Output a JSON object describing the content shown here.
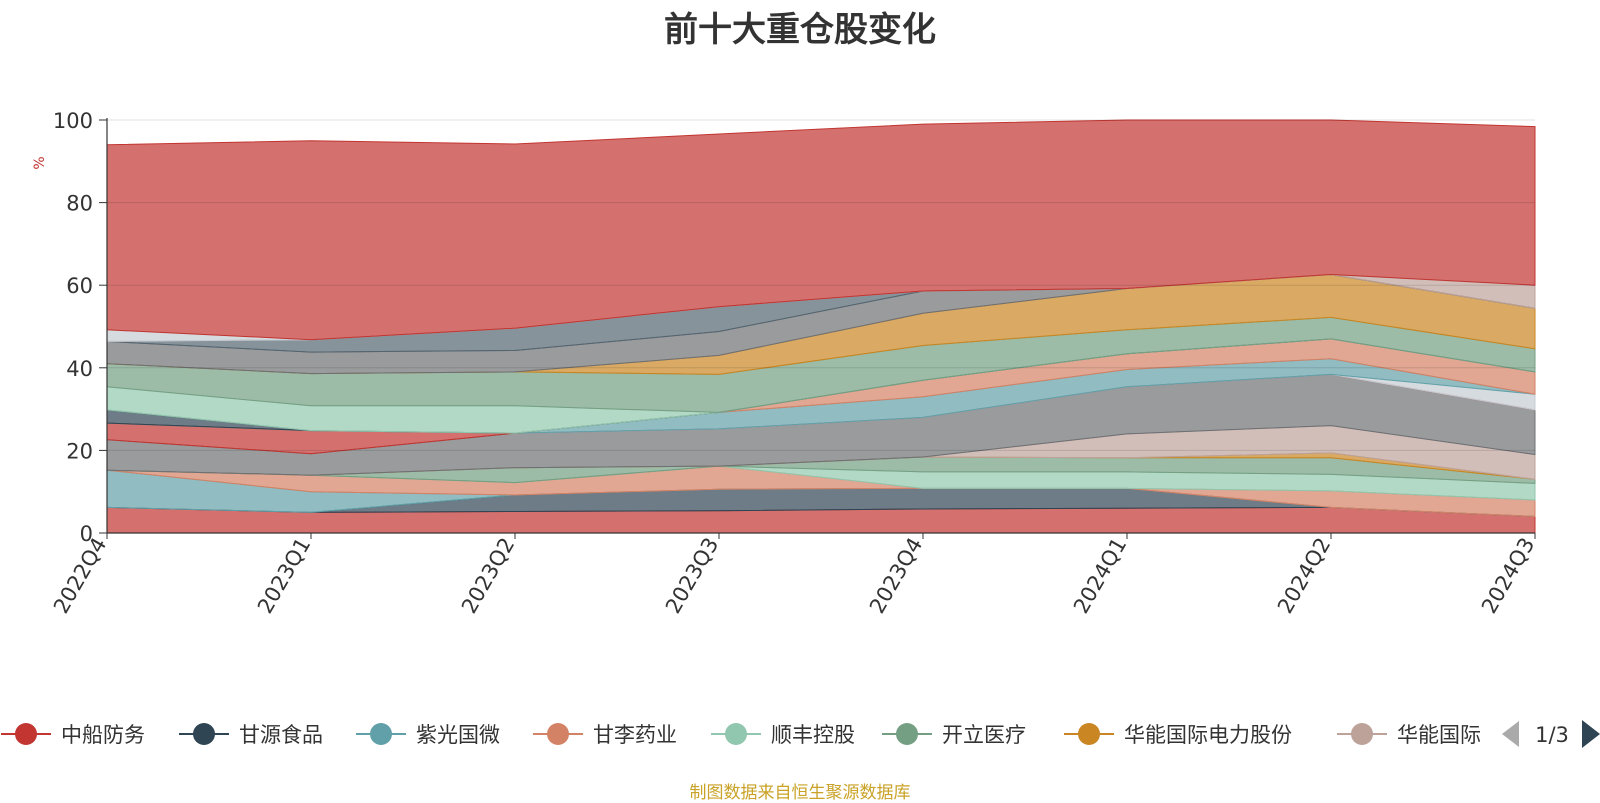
{
  "chart_data": {
    "type": "area",
    "stacked": true,
    "title": "前十大重仓股变化",
    "ylabel": "%",
    "ylim": [
      0,
      100
    ],
    "yticks": [
      0,
      20,
      40,
      60,
      80,
      100
    ],
    "categories": [
      "2022Q4",
      "2023Q1",
      "2023Q2",
      "2023Q3",
      "2023Q4",
      "2024Q1",
      "2024Q2",
      "2024Q3"
    ],
    "series": [
      {
        "name": "中船防务",
        "color": "#c23531",
        "values": [
          6.2,
          5.0,
          5.2,
          5.4,
          5.8,
          6.0,
          6.2,
          4.0
        ]
      },
      {
        "name": "甘源食品",
        "color": "#2f4554",
        "values": [
          0.0,
          0.0,
          4.0,
          5.2,
          5.0,
          4.8,
          0.0,
          0.0
        ]
      },
      {
        "name": "紫光国微",
        "color": "#61a0a8",
        "values": [
          9.0,
          5.0,
          0.0,
          0.0,
          0.0,
          0.0,
          0.0,
          0.0
        ]
      },
      {
        "name": "甘李药业",
        "color": "#d48265",
        "values": [
          0.0,
          4.0,
          3.0,
          5.6,
          0.0,
          0.0,
          4.0,
          4.0
        ]
      },
      {
        "name": "顺丰控股",
        "color": "#91c7ae",
        "values": [
          0.0,
          0.0,
          0.0,
          0.0,
          4.0,
          4.0,
          4.0,
          4.0
        ]
      },
      {
        "name": "开立医疗",
        "color": "#749f83",
        "values": [
          0.0,
          0.0,
          3.6,
          0.0,
          3.6,
          3.4,
          4.0,
          1.0
        ]
      },
      {
        "name": "华能国际电力股份",
        "color": "#ca8622",
        "values": [
          0.0,
          0.0,
          0.0,
          0.0,
          0.0,
          0.0,
          1.2,
          0.0
        ]
      },
      {
        "name": "华能国际",
        "color": "#bda29a",
        "values": [
          0.0,
          0.0,
          0.0,
          0.0,
          0.0,
          5.8,
          6.6,
          6.0
        ]
      },
      {
        "name": "",
        "color": "#6e7074",
        "values": [
          7.4,
          5.2,
          8.4,
          9.0,
          9.6,
          11.4,
          12.4,
          10.8
        ]
      },
      {
        "name": "",
        "color": "#c23531",
        "values": [
          4.0,
          5.6,
          0.0,
          0.0,
          0.0,
          0.0,
          0.0,
          0.0
        ]
      },
      {
        "name": "",
        "color": "#c4ccd3",
        "values": [
          0.0,
          0.0,
          0.0,
          0.0,
          0.0,
          0.0,
          0.0,
          3.8
        ]
      },
      {
        "name": "",
        "color": "#61a0a8",
        "values": [
          0.0,
          0.0,
          0.0,
          4.0,
          5.0,
          4.2,
          3.8,
          0.0
        ]
      },
      {
        "name": "",
        "color": "#d48265",
        "values": [
          0.0,
          0.0,
          0.0,
          0.0,
          4.0,
          3.8,
          4.8,
          5.4
        ]
      },
      {
        "name": "",
        "color": "#2f4554",
        "values": [
          3.2,
          0.0,
          0.0,
          0.0,
          0.0,
          0.0,
          0.0,
          0.0
        ]
      },
      {
        "name": "",
        "color": "#91c7ae",
        "values": [
          5.6,
          6.0,
          6.6,
          0.0,
          0.0,
          0.0,
          0.0,
          0.0
        ]
      },
      {
        "name": "",
        "color": "#749f83",
        "values": [
          5.6,
          7.8,
          8.2,
          9.2,
          8.4,
          5.8,
          5.2,
          5.6
        ]
      },
      {
        "name": "",
        "color": "#ca8622",
        "values": [
          0.0,
          0.0,
          0.0,
          4.6,
          7.8,
          10.0,
          10.4,
          9.8
        ]
      },
      {
        "name": "",
        "color": "#6e7074",
        "values": [
          5.4,
          5.2,
          5.2,
          5.8,
          5.4,
          0.0,
          0.0,
          0.0
        ]
      },
      {
        "name": "",
        "color": "#546570",
        "values": [
          0.0,
          3.0,
          5.4,
          6.0,
          0.0,
          0.0,
          0.0,
          0.0
        ]
      },
      {
        "name": "",
        "color": "#bda29a",
        "values": [
          0.0,
          0.0,
          0.0,
          0.0,
          0.0,
          0.0,
          0.0,
          5.6
        ]
      },
      {
        "name": "",
        "color": "#c4ccd3",
        "values": [
          2.8,
          0.0,
          0.0,
          0.0,
          0.0,
          0.0,
          0.0,
          0.0
        ]
      },
      {
        "name": "",
        "color": "#c23531",
        "values": [
          44.8,
          48.2,
          44.6,
          41.8,
          40.4,
          40.8,
          37.4,
          38.4
        ]
      }
    ],
    "legend": {
      "position": "bottom",
      "items": [
        "中船防务",
        "甘源食品",
        "紫光国微",
        "甘李药业",
        "顺丰控股",
        "开立医疗",
        "华能国际电力股份",
        "华能国际"
      ],
      "page_label": "1/3"
    },
    "source": "制图数据来自恒生聚源数据库"
  }
}
